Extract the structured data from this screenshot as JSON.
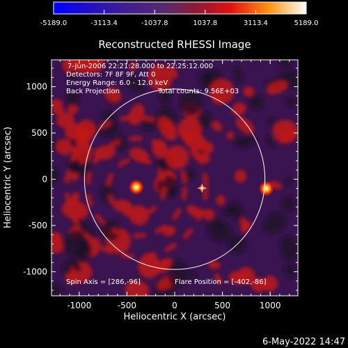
{
  "colorbar": {
    "ticks": [
      "-5189.0",
      "-3113.4",
      "-1037.8",
      "1037.8",
      "3113.4",
      "5189.0"
    ],
    "range": [
      -5189.0,
      5189.0
    ]
  },
  "title": "Reconstructed RHESSI Image",
  "info": {
    "time_range": "7-Jun-2006 22:21:28.000 to 22:25:12.000",
    "detectors": "Detectors: 7F 8F 9F, Att 0",
    "energy": "Energy Range: 6.0 - 12.0 keV",
    "method": "Back Projection",
    "counts": "Total counts: 9.56E+03"
  },
  "axes": {
    "xlabel": "Heliocentric X (arcsec)",
    "ylabel": "Heliocentric Y (arcsec)",
    "xticks": [
      "-1000",
      "-500",
      "0",
      "500",
      "1000"
    ],
    "yticks": [
      "1000",
      "500",
      "0",
      "-500",
      "-1000"
    ],
    "xlim": [
      -1290,
      1290
    ],
    "ylim": [
      -1260,
      1290
    ]
  },
  "footer": {
    "spin_axis": "Spin Axis = [286,-96]",
    "flare_position": "Flare Position = [-402,-86]"
  },
  "timestamp": "6-May-2022 14:47",
  "colors": {
    "colorbar_low": "#0000ff",
    "colorbar_mid": "#5a2a8a",
    "colorbar_high": "#ffffff",
    "image_red": "#c01010",
    "image_purple": "#4a1f6e",
    "limb_circle": "#ffffff",
    "text": "#ffffff",
    "background": "#000000"
  },
  "sources": [
    {
      "name": "flare",
      "x": -402,
      "y": -86
    },
    {
      "name": "bright-east",
      "x": 960,
      "y": -100
    },
    {
      "name": "spin-axis-marker",
      "x": 286,
      "y": -96
    }
  ],
  "solar_radius_arcsec": 945
}
